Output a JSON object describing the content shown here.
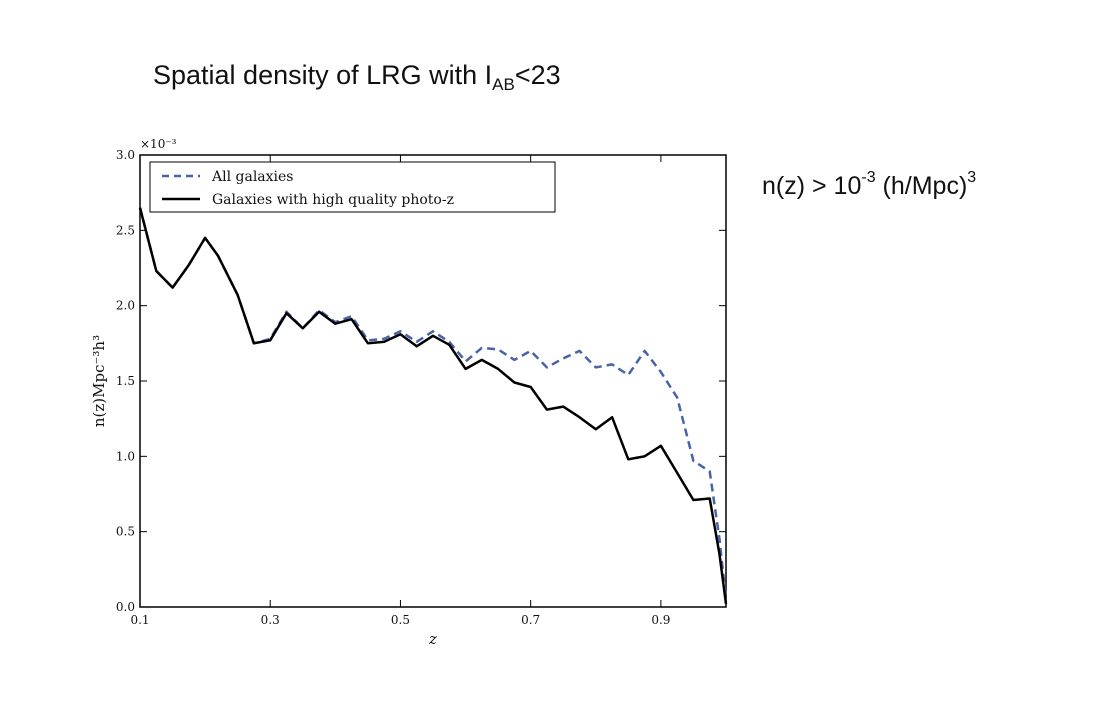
{
  "slide": {
    "title_main": "Spatial density of LRG with I",
    "title_sub": "AB",
    "title_tail": "<23",
    "note_main": "n(z) > 10",
    "note_exp1": "-3",
    "note_mid": " (h/Mpc)",
    "note_exp2": "3"
  },
  "chart_data": {
    "type": "line",
    "xlabel": "z",
    "ylabel": "n(z)Mpc⁻³h³",
    "y_multiplier_label": "×10⁻³",
    "xlim": [
      0.1,
      1.0
    ],
    "ylim": [
      0.0,
      3.0
    ],
    "xticks": [
      "0.1",
      "0.3",
      "0.5",
      "0.7",
      "0.9"
    ],
    "xtick_values": [
      0.1,
      0.3,
      0.5,
      0.7,
      0.9
    ],
    "yticks": [
      "0.0",
      "0.5",
      "1.0",
      "1.5",
      "2.0",
      "2.5",
      "3.0"
    ],
    "ytick_values": [
      0.0,
      0.5,
      1.0,
      1.5,
      2.0,
      2.5,
      3.0
    ],
    "grid": false,
    "legend": "top-left",
    "x": [
      0.1,
      0.125,
      0.15,
      0.175,
      0.2,
      0.22,
      0.25,
      0.275,
      0.3,
      0.325,
      0.35,
      0.375,
      0.4,
      0.425,
      0.45,
      0.475,
      0.5,
      0.525,
      0.55,
      0.575,
      0.6,
      0.625,
      0.65,
      0.675,
      0.7,
      0.725,
      0.75,
      0.775,
      0.8,
      0.825,
      0.85,
      0.875,
      0.9,
      0.925,
      0.95,
      0.975,
      0.99,
      1.0
    ],
    "series": [
      {
        "name": "All galaxies",
        "style": "dashed",
        "color": "#4a62a8",
        "values": [
          2.65,
          2.23,
          2.12,
          2.27,
          2.45,
          2.33,
          2.07,
          1.75,
          1.78,
          1.96,
          1.85,
          1.97,
          1.89,
          1.93,
          1.77,
          1.78,
          1.83,
          1.76,
          1.83,
          1.76,
          1.63,
          1.72,
          1.71,
          1.64,
          1.7,
          1.59,
          1.65,
          1.7,
          1.59,
          1.61,
          1.54,
          1.7,
          1.56,
          1.39,
          0.97,
          0.9,
          0.45,
          0.05
        ]
      },
      {
        "name": "Galaxies with high quality photo-z",
        "style": "solid",
        "color": "#000000",
        "values": [
          2.65,
          2.23,
          2.12,
          2.27,
          2.45,
          2.33,
          2.07,
          1.75,
          1.77,
          1.95,
          1.85,
          1.96,
          1.88,
          1.91,
          1.75,
          1.76,
          1.81,
          1.73,
          1.8,
          1.74,
          1.58,
          1.64,
          1.58,
          1.49,
          1.46,
          1.31,
          1.33,
          1.26,
          1.18,
          1.26,
          0.98,
          1.0,
          1.07,
          0.89,
          0.71,
          0.72,
          0.35,
          0.02
        ]
      }
    ]
  }
}
